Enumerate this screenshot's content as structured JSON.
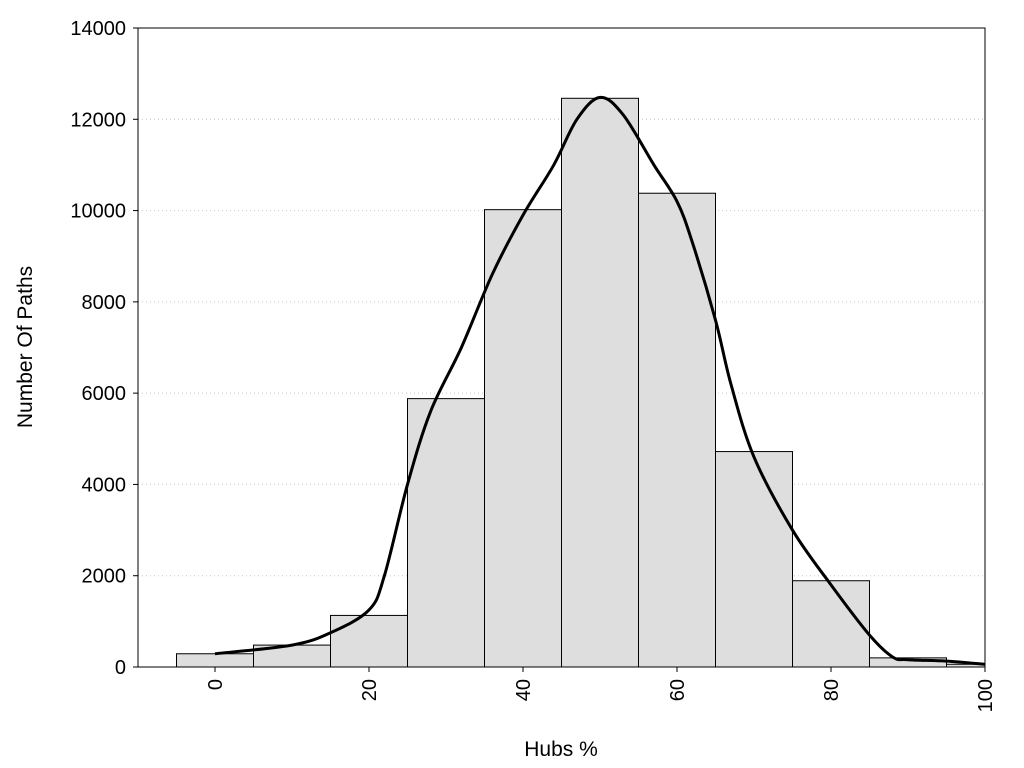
{
  "chart_data": {
    "type": "bar",
    "title": "",
    "xlabel": "Hubs %",
    "ylabel": "Number Of Paths",
    "xlim": [
      -10,
      100
    ],
    "ylim": [
      0,
      14000
    ],
    "xticks": [
      "0",
      "20",
      "40",
      "60",
      "80",
      "100"
    ],
    "yticks": [
      "0",
      "2000",
      "4000",
      "6000",
      "8000",
      "10000",
      "12000",
      "14000"
    ],
    "grid": "horizontal dotted",
    "legend": "none",
    "bin_width": 10,
    "bins": [
      {
        "center": 0,
        "value": 290
      },
      {
        "center": 10,
        "value": 480
      },
      {
        "center": 20,
        "value": 1130
      },
      {
        "center": 30,
        "value": 5880
      },
      {
        "center": 40,
        "value": 10020
      },
      {
        "center": 50,
        "value": 12460
      },
      {
        "center": 60,
        "value": 10380
      },
      {
        "center": 70,
        "value": 4720
      },
      {
        "center": 80,
        "value": 1890
      },
      {
        "center": 90,
        "value": 200
      },
      {
        "center": 100,
        "value": 60
      }
    ],
    "series": [
      {
        "type": "line",
        "x": [
          0,
          10,
          15,
          20,
          22,
          25,
          28,
          32,
          36,
          40,
          44,
          47,
          50,
          53,
          57,
          60,
          62,
          65,
          67,
          70,
          75,
          80,
          85,
          88,
          90,
          95,
          100
        ],
        "y": [
          290,
          480,
          750,
          1250,
          2000,
          4000,
          5600,
          7000,
          8600,
          9900,
          11000,
          12000,
          12480,
          12100,
          11000,
          10200,
          9300,
          7600,
          6200,
          4600,
          3000,
          1800,
          700,
          220,
          160,
          130,
          60
        ]
      }
    ],
    "colors": {
      "bar_fill": "#dedede",
      "bar_stroke": "#000000",
      "line": "#000000",
      "grid": "#c8c8c8"
    }
  }
}
